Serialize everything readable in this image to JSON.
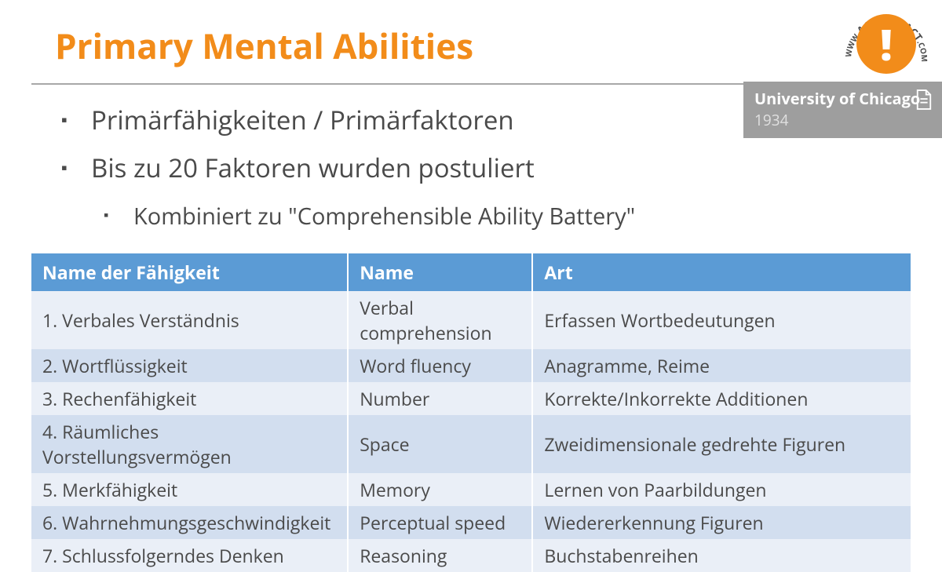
{
  "colors": {
    "accent": "#f28c1a",
    "divider": "#a8a8a8",
    "text": "#4a4a4a",
    "badge_bg": "#9e9e9e",
    "table_header_bg": "#5b9bd5",
    "table_row_even": "#eaeff7",
    "table_row_odd": "#d2deef"
  },
  "title": "Primary Mental Abilities",
  "bullets": [
    "Primärfähigkeiten / Primärfaktoren",
    "Bis zu 20 Faktoren wurden postuliert"
  ],
  "sub_bullet": "Kombiniert zu \"Comprehensible Ability Battery\"",
  "badge": {
    "title": "University of Chicago",
    "year": "1934"
  },
  "logo": {
    "text_top": "ACT-ACT-ACT",
    "prefix": "WWW.",
    "suffix": ".COM"
  },
  "table": {
    "columns": [
      "Name der Fähigkeit",
      "Name",
      "Art"
    ],
    "col_widths": [
      "36%",
      "21%",
      "43%"
    ],
    "rows": [
      [
        "1. Verbales Verständnis",
        "Verbal comprehension",
        "Erfassen Wortbedeutungen"
      ],
      [
        "2. Wortflüssigkeit",
        "Word fluency",
        "Anagramme, Reime"
      ],
      [
        "3. Rechenfähigkeit",
        "Number",
        "Korrekte/Inkorrekte Additionen"
      ],
      [
        "4. Räumliches Vorstellungsvermögen",
        "Space",
        "Zweidimensionale gedrehte Figuren"
      ],
      [
        "5. Merkfähigkeit",
        "Memory",
        "Lernen von Paarbildungen"
      ],
      [
        "6. Wahrnehmungsgeschwindigkeit",
        "Perceptual speed",
        "Wiedererkennung Figuren"
      ],
      [
        "7. Schlussfolgerndes Denken",
        "Reasoning",
        "Buchstabenreihen"
      ]
    ]
  }
}
